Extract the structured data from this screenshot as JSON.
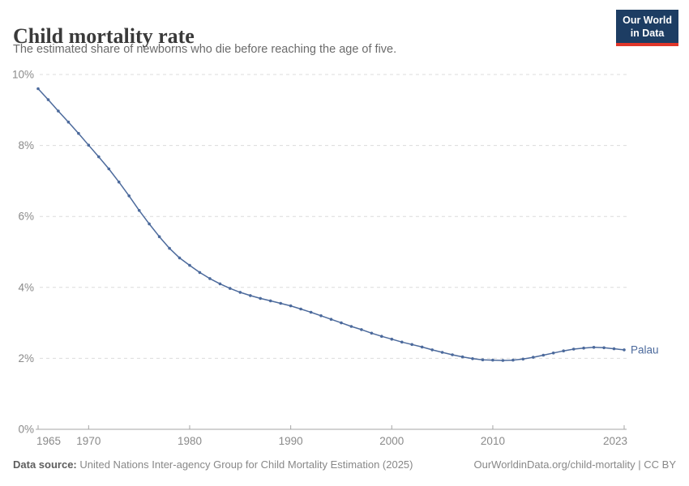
{
  "header": {
    "title": "Child mortality rate",
    "subtitle": "The estimated share of newborns who die before reaching the age of five.",
    "logo": {
      "line1": "Our World",
      "line2": "in Data"
    }
  },
  "chart_data": {
    "type": "line",
    "title": "Child mortality rate",
    "subtitle": "The estimated share of newborns who die before reaching the age of five.",
    "xlabel": "",
    "ylabel": "",
    "ylim": [
      0,
      10
    ],
    "y_tick_values": [
      0,
      2,
      4,
      6,
      8,
      10
    ],
    "y_tick_labels": [
      "0%",
      "2%",
      "4%",
      "6%",
      "8%",
      "10%"
    ],
    "x_tick_values": [
      1965,
      1970,
      1980,
      1990,
      2000,
      2010,
      2023
    ],
    "grid": "horizontal-dashed",
    "legend_position": "line-end-label",
    "series": [
      {
        "name": "Palau",
        "color": "#4C6A9C",
        "x": [
          1965,
          1966,
          1967,
          1968,
          1969,
          1970,
          1971,
          1972,
          1973,
          1974,
          1975,
          1976,
          1977,
          1978,
          1979,
          1980,
          1981,
          1982,
          1983,
          1984,
          1985,
          1986,
          1987,
          1988,
          1989,
          1990,
          1991,
          1992,
          1993,
          1994,
          1995,
          1996,
          1997,
          1998,
          1999,
          2000,
          2001,
          2002,
          2003,
          2004,
          2005,
          2006,
          2007,
          2008,
          2009,
          2010,
          2011,
          2012,
          2013,
          2014,
          2015,
          2016,
          2017,
          2018,
          2019,
          2020,
          2021,
          2022,
          2023
        ],
        "values": [
          9.6,
          9.29,
          8.97,
          8.66,
          8.34,
          8.01,
          7.68,
          7.34,
          6.97,
          6.58,
          6.17,
          5.79,
          5.43,
          5.1,
          4.83,
          4.62,
          4.42,
          4.25,
          4.1,
          3.97,
          3.86,
          3.77,
          3.69,
          3.62,
          3.55,
          3.48,
          3.39,
          3.3,
          3.2,
          3.1,
          3.0,
          2.9,
          2.81,
          2.71,
          2.62,
          2.54,
          2.46,
          2.39,
          2.32,
          2.24,
          2.17,
          2.1,
          2.04,
          1.99,
          1.96,
          1.95,
          1.94,
          1.95,
          1.98,
          2.03,
          2.09,
          2.15,
          2.21,
          2.26,
          2.29,
          2.31,
          2.3,
          2.27,
          2.24
        ]
      }
    ]
  },
  "footer": {
    "source_label": "Data source:",
    "source_text": " United Nations Inter-agency Group for Child Mortality Estimation (2025)",
    "attribution": "OurWorldinData.org/child-mortality | CC BY"
  },
  "colors": {
    "line_blue": "#4C6A9C",
    "logo_navy": "#1d3d63",
    "logo_red": "#e0362a",
    "grid": "#dcdcdc",
    "axis": "#a5a5a5",
    "tick_text": "#8a8a8a"
  }
}
